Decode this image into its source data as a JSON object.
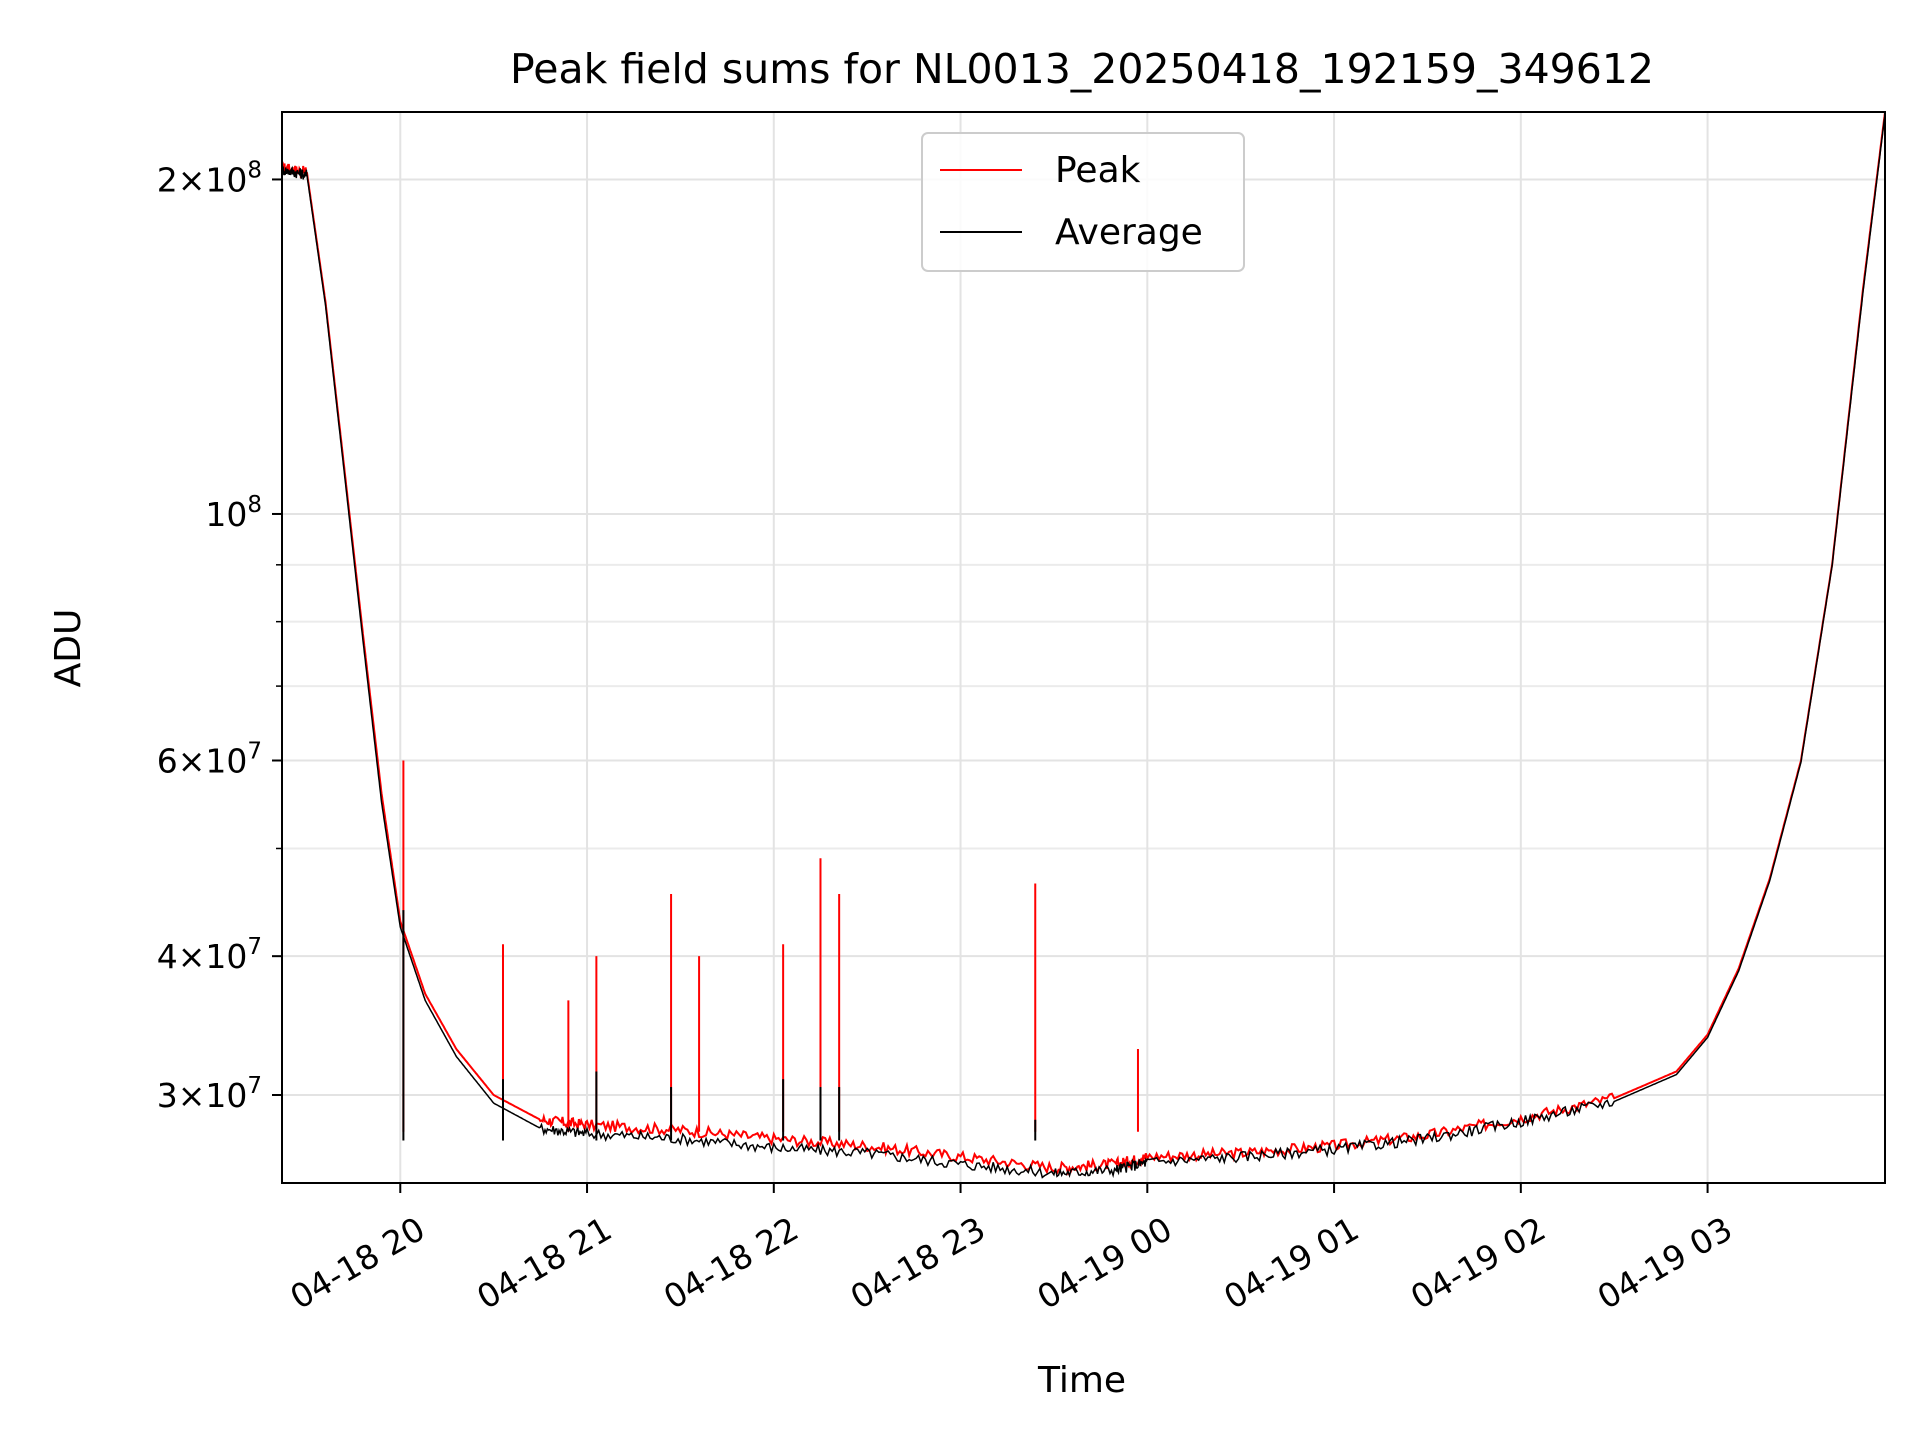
{
  "chart_data": {
    "type": "line",
    "title": "Peak field sums for NL0013_20250418_192159_349612",
    "xlabel": "Time",
    "ylabel": "ADU",
    "yscale": "log",
    "xlim": [
      "2025-04-18 19:22",
      "2025-04-19 03:57"
    ],
    "ylim": [
      25000000,
      230000000
    ],
    "x_ticks": [
      {
        "value": "2025-04-18 20:00",
        "label": "04-18 20"
      },
      {
        "value": "2025-04-18 21:00",
        "label": "04-18 21"
      },
      {
        "value": "2025-04-18 22:00",
        "label": "04-18 22"
      },
      {
        "value": "2025-04-18 23:00",
        "label": "04-18 23"
      },
      {
        "value": "2025-04-19 00:00",
        "label": "04-19 00"
      },
      {
        "value": "2025-04-19 01:00",
        "label": "04-19 01"
      },
      {
        "value": "2025-04-19 02:00",
        "label": "04-19 02"
      },
      {
        "value": "2025-04-19 03:00",
        "label": "04-19 03"
      }
    ],
    "y_ticks": [
      {
        "value": 200000000,
        "mant": "2",
        "exp": "8"
      },
      {
        "value": 100000000,
        "mant": "",
        "exp": "8"
      },
      {
        "value": 60000000,
        "mant": "6",
        "exp": "7"
      },
      {
        "value": 40000000,
        "mant": "4",
        "exp": "7"
      },
      {
        "value": 30000000,
        "mant": "3",
        "exp": "7"
      }
    ],
    "y_minor_ticks": [
      90000000,
      80000000,
      70000000,
      50000000
    ],
    "grid": true,
    "legend": "top-center",
    "series": [
      {
        "name": "Peak",
        "color": "#ff0000",
        "x": [
          "2025-04-18 19:22",
          "2025-04-18 19:30",
          "2025-04-18 19:36",
          "2025-04-18 19:42",
          "2025-04-18 19:48",
          "2025-04-18 19:54",
          "2025-04-18 20:00",
          "2025-04-18 20:08",
          "2025-04-18 20:18",
          "2025-04-18 20:30",
          "2025-04-18 20:45",
          "2025-04-18 21:00",
          "2025-04-18 21:30",
          "2025-04-18 22:00",
          "2025-04-18 22:30",
          "2025-04-18 23:00",
          "2025-04-18 23:30",
          "2025-04-18 23:50",
          "2025-04-19 00:00",
          "2025-04-19 00:30",
          "2025-04-19 01:00",
          "2025-04-19 01:30",
          "2025-04-19 02:00",
          "2025-04-19 02:30",
          "2025-04-19 02:50",
          "2025-04-19 03:00",
          "2025-04-19 03:10",
          "2025-04-19 03:20",
          "2025-04-19 03:30",
          "2025-04-19 03:40",
          "2025-04-19 03:50",
          "2025-04-19 03:57"
        ],
        "values": [
          205000000,
          203000000,
          155000000,
          110000000,
          78000000,
          56000000,
          43000000,
          37000000,
          33000000,
          30000000,
          28500000,
          28200000,
          27900000,
          27400000,
          27000000,
          26400000,
          25800000,
          26000000,
          26400000,
          26600000,
          27000000,
          27600000,
          28600000,
          29800000,
          31500000,
          34000000,
          39000000,
          47000000,
          60000000,
          90000000,
          160000000,
          230000000
        ],
        "spikes": [
          {
            "x": "2025-04-18 20:01",
            "y": 60000000
          },
          {
            "x": "2025-04-18 20:33",
            "y": 41000000
          },
          {
            "x": "2025-04-18 20:54",
            "y": 36500000
          },
          {
            "x": "2025-04-18 21:03",
            "y": 40000000
          },
          {
            "x": "2025-04-18 21:27",
            "y": 45500000
          },
          {
            "x": "2025-04-18 21:36",
            "y": 40000000
          },
          {
            "x": "2025-04-18 22:03",
            "y": 41000000
          },
          {
            "x": "2025-04-18 22:15",
            "y": 49000000
          },
          {
            "x": "2025-04-18 22:21",
            "y": 45500000
          },
          {
            "x": "2025-04-18 23:24",
            "y": 46500000
          },
          {
            "x": "2025-04-18 23:57",
            "y": 33000000
          }
        ]
      },
      {
        "name": "Average",
        "color": "#000000",
        "x": [
          "2025-04-18 19:22",
          "2025-04-18 19:30",
          "2025-04-18 19:36",
          "2025-04-18 19:42",
          "2025-04-18 19:48",
          "2025-04-18 19:54",
          "2025-04-18 20:00",
          "2025-04-18 20:08",
          "2025-04-18 20:18",
          "2025-04-18 20:30",
          "2025-04-18 20:45",
          "2025-04-18 21:00",
          "2025-04-18 21:30",
          "2025-04-18 22:00",
          "2025-04-18 22:30",
          "2025-04-18 23:00",
          "2025-04-18 23:30",
          "2025-04-18 23:50",
          "2025-04-19 00:00",
          "2025-04-19 00:30",
          "2025-04-19 01:00",
          "2025-04-19 01:30",
          "2025-04-19 02:00",
          "2025-04-19 02:30",
          "2025-04-19 02:50",
          "2025-04-19 03:00",
          "2025-04-19 03:10",
          "2025-04-19 03:20",
          "2025-04-19 03:30",
          "2025-04-19 03:40",
          "2025-04-19 03:50",
          "2025-04-19 03:57"
        ],
        "values": [
          204000000,
          202000000,
          154000000,
          109000000,
          77000000,
          55000000,
          42500000,
          36500000,
          32500000,
          29500000,
          28000000,
          27700000,
          27400000,
          26900000,
          26600000,
          26000000,
          25500000,
          25700000,
          26100000,
          26400000,
          26800000,
          27400000,
          28400000,
          29600000,
          31300000,
          33800000,
          38800000,
          46800000,
          59800000,
          89800000,
          159000000,
          229000000
        ],
        "spikes": [
          {
            "x": "2025-04-18 20:01",
            "y": 44000000
          },
          {
            "x": "2025-04-18 20:33",
            "y": 31000000
          },
          {
            "x": "2025-04-18 21:03",
            "y": 31500000
          },
          {
            "x": "2025-04-18 21:27",
            "y": 30500000
          },
          {
            "x": "2025-04-18 22:03",
            "y": 31000000
          },
          {
            "x": "2025-04-18 22:15",
            "y": 30500000
          },
          {
            "x": "2025-04-18 22:21",
            "y": 30500000
          },
          {
            "x": "2025-04-18 23:24",
            "y": 28500000
          }
        ]
      }
    ]
  }
}
